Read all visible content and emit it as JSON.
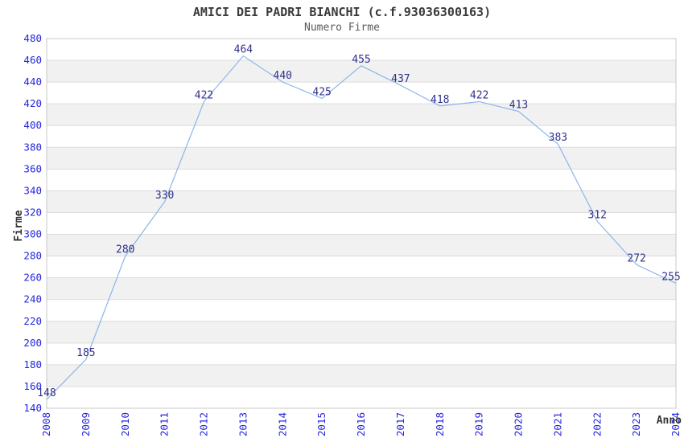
{
  "chart_data": {
    "type": "line",
    "title": "AMICI DEI PADRI BIANCHI (c.f.93036300163)",
    "subtitle": "Numero Firme",
    "xlabel": "Anno",
    "ylabel": "Firme",
    "x": [
      "2008",
      "2009",
      "2010",
      "2011",
      "2012",
      "2013",
      "2014",
      "2015",
      "2016",
      "2017",
      "2018",
      "2019",
      "2020",
      "2021",
      "2022",
      "2023",
      "2024"
    ],
    "series": [
      {
        "name": "Numero Firme",
        "values": [
          148,
          185,
          280,
          330,
          422,
          464,
          440,
          425,
          455,
          437,
          418,
          422,
          413,
          383,
          312,
          272,
          255
        ]
      }
    ],
    "ylim": [
      140,
      480
    ],
    "ytick_step": 20,
    "grid": true,
    "legend": false,
    "background_bands": true,
    "colors": {
      "line": "#8cb6e8",
      "tick_label": "#2424dd",
      "data_label": "#30308c",
      "band_gray": "#f1f1f1",
      "band_white": "#ffffff",
      "gridline": "#dcdcdc",
      "plot_border": "#c8c8c8",
      "title": "#3a3a3a",
      "subtitle": "#5a5a5a",
      "axis_title": "#333333"
    }
  }
}
